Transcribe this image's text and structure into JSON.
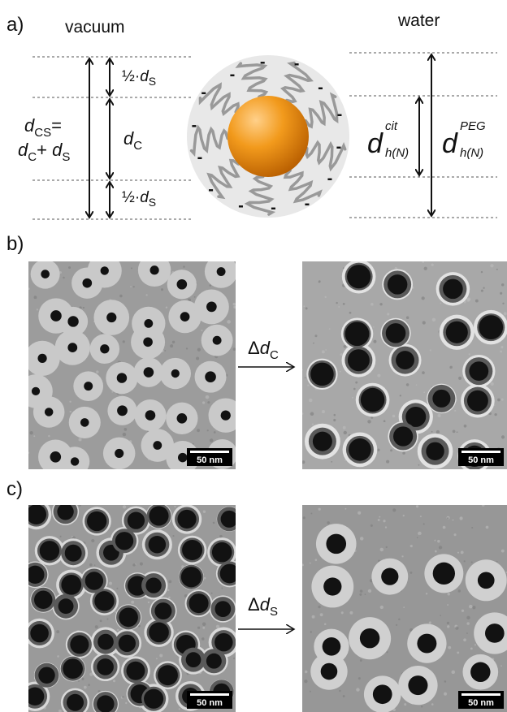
{
  "panels": {
    "a": {
      "label": "a)",
      "left_title": "vacuum",
      "right_title": "water",
      "half_shell": {
        "prefix": "½·",
        "base": "d",
        "sub": "S"
      },
      "core": {
        "base": "d",
        "sub": "C"
      },
      "core_shell": {
        "lhs_base": "d",
        "lhs_sub": "CS",
        "equals": "=",
        "term1_base": "d",
        "term1_sub": "C",
        "plus": "+ ",
        "term2_base": "d",
        "term2_sub": "S"
      },
      "hydro_cit": {
        "base": "d",
        "sup": "cit",
        "sub": "h(N)"
      },
      "hydro_peg": {
        "base": "d",
        "sup": "PEG",
        "sub": "h(N)"
      },
      "charge": "-"
    },
    "b": {
      "label": "b)",
      "arrow": {
        "prefix": "Δ",
        "base": "d",
        "sub": "C"
      },
      "scale_bars": [
        "50 nm",
        "50 nm"
      ]
    },
    "c": {
      "label": "c)",
      "arrow": {
        "prefix": "Δ",
        "base": "d",
        "sub": "S"
      },
      "scale_bars": [
        "50 nm",
        "50 nm"
      ]
    }
  }
}
